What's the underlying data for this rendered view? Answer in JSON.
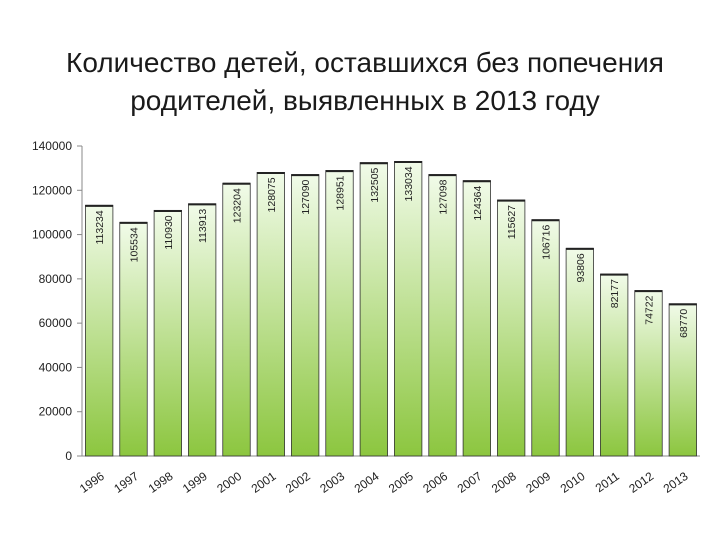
{
  "title": {
    "line1": "Количество детей, оставшихся без попечения",
    "line2": "родителей, выявленных в 2013 году"
  },
  "chart_data": {
    "type": "bar",
    "title": "Количество детей, оставшихся без попечения родителей, выявленных в 2013 году",
    "categories": [
      "1996",
      "1997",
      "1998",
      "1999",
      "2000",
      "2001",
      "2002",
      "2003",
      "2004",
      "2005",
      "2006",
      "2007",
      "2008",
      "2009",
      "2010",
      "2011",
      "2012",
      "2013"
    ],
    "values": [
      113234,
      105534,
      110930,
      113913,
      123204,
      128075,
      127090,
      128951,
      132505,
      133034,
      127098,
      124364,
      115627,
      106716,
      93806,
      82177,
      74722,
      68770
    ],
    "value_labels": [
      "113234",
      "105534",
      "110930",
      "113913",
      "123204",
      "128075",
      "127090",
      "128951",
      "132505",
      "133034",
      "127098",
      "124364",
      "115627",
      "106716",
      "93806",
      "82177",
      "74722",
      "68770"
    ],
    "ylim": [
      0,
      140000
    ],
    "yticks": [
      0,
      20000,
      40000,
      60000,
      80000,
      100000,
      120000,
      140000
    ],
    "ytick_labels": [
      "0",
      "20000",
      "40000",
      "60000",
      "80000",
      "100000",
      "120000",
      "140000"
    ],
    "xlabel": "",
    "ylabel": "",
    "grid": false,
    "colors": {
      "bar_top": "#f1fbe9",
      "bar_bottom": "#8cc63f",
      "bar_stroke": "#333333",
      "axis": "#888888",
      "text": "#222222"
    }
  }
}
